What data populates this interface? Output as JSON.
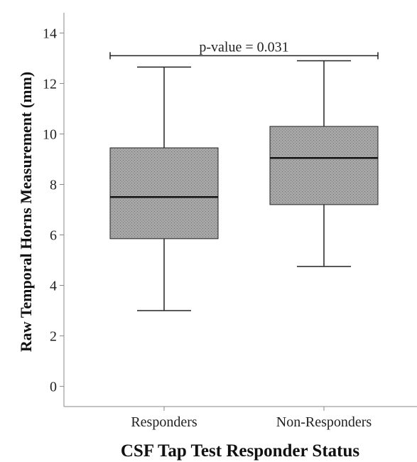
{
  "chart_data": {
    "type": "box",
    "title": "",
    "xlabel": "CSF Tap Test Responder Status",
    "ylabel": "Raw Temporal Horns Measurement (mm)",
    "ylim": [
      -0.8,
      14.8
    ],
    "yticks": [
      0,
      2,
      4,
      6,
      8,
      10,
      12,
      14
    ],
    "categories": [
      "Responders",
      "Non-Responders"
    ],
    "boxes": [
      {
        "category": "Responders",
        "whisker_low": 3.0,
        "q1": 5.85,
        "median": 7.5,
        "q3": 9.45,
        "whisker_high": 12.65
      },
      {
        "category": "Non-Responders",
        "whisker_low": 4.75,
        "q1": 7.2,
        "median": 9.05,
        "q3": 10.3,
        "whisker_high": 12.9
      }
    ],
    "annotation": {
      "text": "p-value = 0.031",
      "y": 13.1
    },
    "grid": false,
    "colors": {
      "box_fill": "#a3a3a3",
      "box_stroke": "#222222",
      "median": "#111111",
      "axis": "#888888"
    }
  }
}
